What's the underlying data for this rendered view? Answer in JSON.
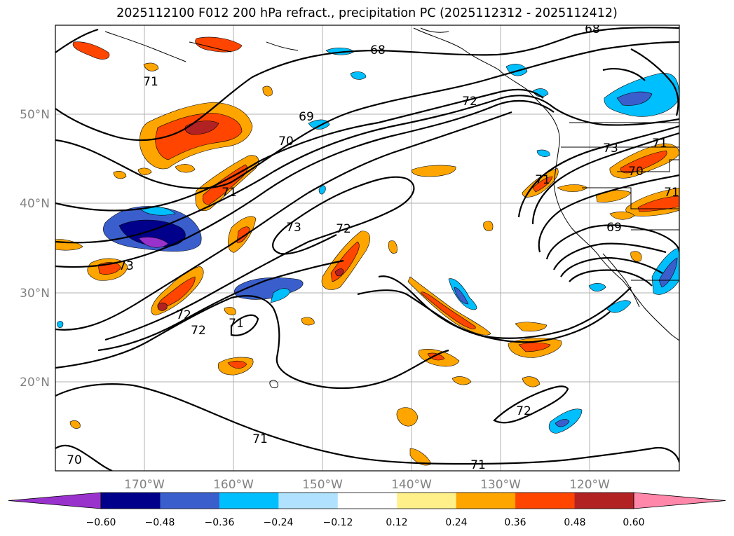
{
  "title": "2025112100 F012 200 hPa refract., precipitation PC (2025112312 - 2025112412)",
  "map": {
    "lon_ticks": [
      "170°W",
      "160°W",
      "150°W",
      "140°W",
      "130°W",
      "120°W"
    ],
    "lat_ticks": [
      "50°N",
      "40°N",
      "30°N",
      "20°N"
    ],
    "contour_labels": [
      "68",
      "68",
      "69",
      "69",
      "70",
      "70",
      "71",
      "71",
      "71",
      "71",
      "71",
      "71",
      "72",
      "72",
      "72",
      "72",
      "72",
      "73",
      "73",
      "73",
      "71",
      "70"
    ]
  },
  "colorbar": {
    "colors": [
      "#9932cc",
      "#00008b",
      "#3a5fcd",
      "#00bfff",
      "#b0e2ff",
      "#ffffff",
      "#fff08a",
      "#ffa500",
      "#ff4500",
      "#b22222",
      "#ff88aa"
    ],
    "tick_labels": [
      "−0.60",
      "−0.48",
      "−0.36",
      "−0.24",
      "−0.12",
      "0.12",
      "0.24",
      "0.36",
      "0.48",
      "0.60"
    ]
  }
}
